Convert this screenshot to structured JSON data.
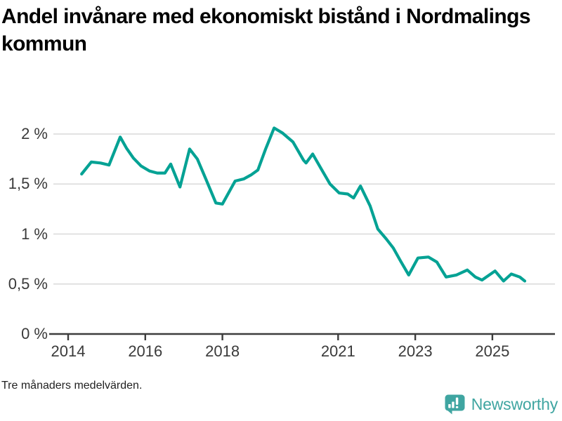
{
  "title": "Andel invånare med ekonomiskt bistånd i Nordmalings kommun",
  "footnote": "Tre månaders medelvärden.",
  "branding": {
    "name": "Newsworthy",
    "icon": "bar-chart-speech-bubble-icon",
    "color": "#3fa5a1"
  },
  "colors": {
    "line": "#04a294",
    "grid": "#d9d9d9",
    "axis": "#3c3c3c",
    "tick_text": "#3a3a3a"
  },
  "chart_data": {
    "type": "line",
    "title": "Andel invånare med ekonomiskt bistånd i Nordmalings kommun",
    "footnote": "Tre månaders medelvärden.",
    "unit": "%",
    "grid": "horizontal",
    "legend": "none",
    "xlim": [
      2013.6,
      2026.3
    ],
    "ylim": [
      0,
      2.2
    ],
    "x_ticks": [
      {
        "value": 2014,
        "label": "2014"
      },
      {
        "value": 2016,
        "label": "2016"
      },
      {
        "value": 2018,
        "label": "2018"
      },
      {
        "value": 2021,
        "label": "2021"
      },
      {
        "value": 2023,
        "label": "2023"
      },
      {
        "value": 2025,
        "label": "2025"
      }
    ],
    "y_ticks": [
      {
        "value": 0,
        "label": "0 %"
      },
      {
        "value": 0.5,
        "label": "0,5 %"
      },
      {
        "value": 1,
        "label": "1 %"
      },
      {
        "value": 1.5,
        "label": "1,5 %"
      },
      {
        "value": 2,
        "label": "2 %"
      }
    ],
    "series": [
      {
        "name": "Andel invånare med ekonomiskt bistånd",
        "points": [
          [
            2014.35,
            1.6
          ],
          [
            2014.6,
            1.72
          ],
          [
            2014.84,
            1.71
          ],
          [
            2015.06,
            1.69
          ],
          [
            2015.35,
            1.97
          ],
          [
            2015.51,
            1.86
          ],
          [
            2015.69,
            1.76
          ],
          [
            2015.89,
            1.68
          ],
          [
            2016.11,
            1.63
          ],
          [
            2016.31,
            1.61
          ],
          [
            2016.51,
            1.61
          ],
          [
            2016.66,
            1.7
          ],
          [
            2016.9,
            1.47
          ],
          [
            2017.15,
            1.85
          ],
          [
            2017.35,
            1.75
          ],
          [
            2017.57,
            1.55
          ],
          [
            2017.83,
            1.31
          ],
          [
            2018.0,
            1.3
          ],
          [
            2018.33,
            1.53
          ],
          [
            2018.55,
            1.55
          ],
          [
            2018.74,
            1.59
          ],
          [
            2018.92,
            1.64
          ],
          [
            2019.12,
            1.85
          ],
          [
            2019.34,
            2.06
          ],
          [
            2019.56,
            2.01
          ],
          [
            2019.83,
            1.92
          ],
          [
            2020.1,
            1.74
          ],
          [
            2020.17,
            1.71
          ],
          [
            2020.34,
            1.8
          ],
          [
            2020.58,
            1.64
          ],
          [
            2020.79,
            1.5
          ],
          [
            2021.03,
            1.41
          ],
          [
            2021.25,
            1.4
          ],
          [
            2021.4,
            1.36
          ],
          [
            2021.58,
            1.48
          ],
          [
            2021.83,
            1.28
          ],
          [
            2022.03,
            1.05
          ],
          [
            2022.25,
            0.95
          ],
          [
            2022.43,
            0.86
          ],
          [
            2022.62,
            0.73
          ],
          [
            2022.83,
            0.59
          ],
          [
            2023.07,
            0.76
          ],
          [
            2023.34,
            0.77
          ],
          [
            2023.56,
            0.72
          ],
          [
            2023.8,
            0.57
          ],
          [
            2024.07,
            0.59
          ],
          [
            2024.35,
            0.64
          ],
          [
            2024.56,
            0.57
          ],
          [
            2024.73,
            0.54
          ],
          [
            2025.07,
            0.63
          ],
          [
            2025.29,
            0.53
          ],
          [
            2025.49,
            0.6
          ],
          [
            2025.71,
            0.57
          ],
          [
            2025.84,
            0.53
          ]
        ]
      }
    ]
  }
}
